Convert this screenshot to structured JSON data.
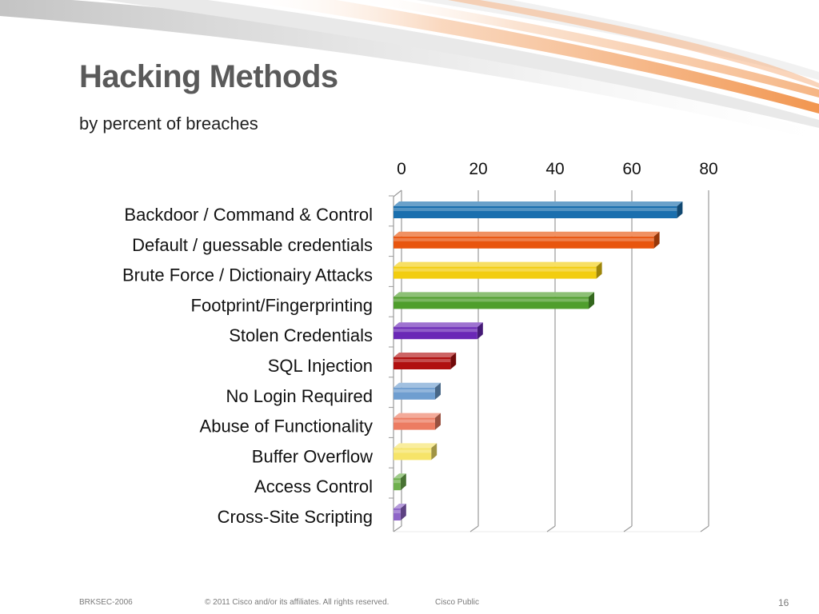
{
  "slide": {
    "title": "Hacking Methods",
    "subtitle": "by percent of breaches"
  },
  "footer": {
    "session_code": "BRKSEC-2006",
    "copyright": "© 2011 Cisco and/or its affiliates. All rights reserved.",
    "classification": "Cisco Public",
    "page_number": "16"
  },
  "colors": {
    "axis": "#9a9a9a",
    "swoosh_orange": "#f4a46a",
    "swoosh_grey": "#d0d0d0"
  },
  "chart_data": {
    "type": "bar",
    "orientation": "horizontal",
    "title": "",
    "xlabel": "",
    "ylabel": "",
    "xlim": [
      0,
      80
    ],
    "ticks": [
      "0",
      "20",
      "40",
      "60",
      "80"
    ],
    "tick_values": [
      0,
      20,
      40,
      60,
      80
    ],
    "grid": true,
    "categories": [
      "Backdoor / Command & Control",
      "Default / guessable credentials",
      "Brute Force / Dictionairy Attacks",
      "Footprint/Fingerprinting",
      "Stolen Credentials",
      "SQL Injection",
      "No Login Required",
      "Abuse of Functionality",
      "Buffer Overflow",
      "Access Control",
      "Cross-Site Scripting"
    ],
    "values": [
      73,
      67,
      52,
      50,
      21,
      14,
      10,
      10,
      9,
      1,
      1
    ],
    "colors": [
      "#1a6fae",
      "#e8550e",
      "#f2cd10",
      "#4f9e2c",
      "#6a28b6",
      "#b01010",
      "#6f9ed0",
      "#ec7c62",
      "#f6e469",
      "#6fb04e",
      "#8f66c8"
    ]
  }
}
